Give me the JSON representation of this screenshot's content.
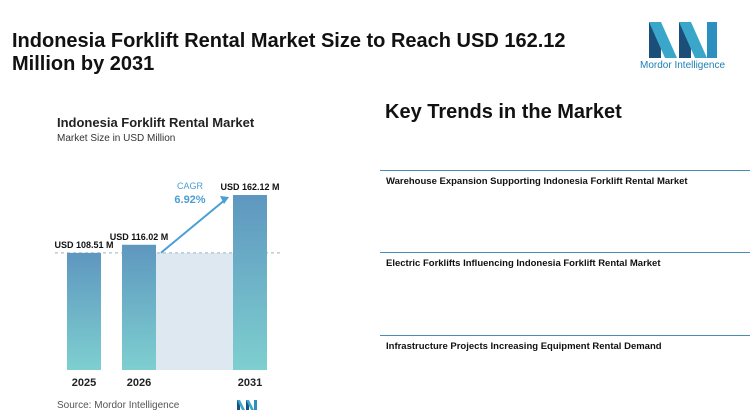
{
  "header": {
    "title": "Indonesia Forklift Rental Market Size to Reach USD 162.12 Million by 2031",
    "logo_text": "Mordor Intelligence"
  },
  "chart_data": {
    "type": "bar",
    "title": "Indonesia Forklift Rental Market",
    "subtitle": "Market Size in USD Million",
    "categories": [
      "2025",
      "2026",
      "2031"
    ],
    "values": [
      108.51,
      116.02,
      162.12
    ],
    "value_labels": [
      "USD 108.51 M",
      "USD 116.02 M",
      "USD 162.12 M"
    ],
    "cagr_label": "CAGR",
    "cagr_value": "6.92%",
    "colors": {
      "bar_top": "#5e97bf",
      "bar_bottom": "#7ecfd0",
      "band": "#dde8f1",
      "arrow": "#4a9fd4",
      "cagr_text": "#4a9fd4"
    }
  },
  "source": {
    "label": "Source: Mordor Intelligence"
  },
  "trends": {
    "title": "Key Trends in the Market",
    "items": [
      "Warehouse Expansion Supporting Indonesia Forklift Rental Market",
      "Electric Forklifts Influencing Indonesia Forklift Rental Market",
      "Infrastructure Projects Increasing Equipment Rental Demand"
    ]
  }
}
